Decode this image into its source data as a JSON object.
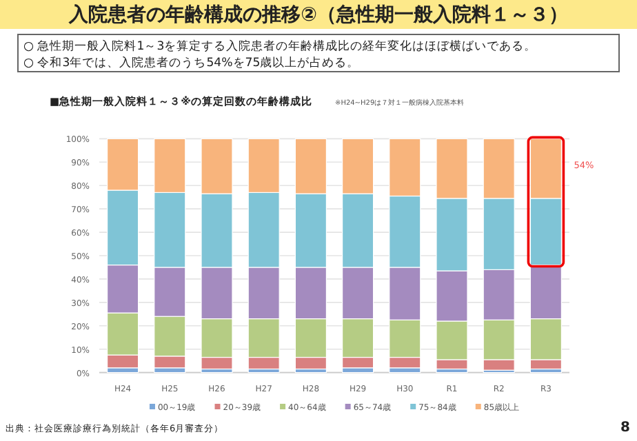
{
  "chart_data": {
    "type": "bar",
    "stacked": true,
    "title": "入院患者の年齢構成の推移②（急性期一般入院料１～３）",
    "subtitle": "■急性期一般入院料１～３※の算定回数の年齢構成比",
    "annotations": [
      "○ 急性期一般入院料1～3を算定する入院患者の年齢構成比の経年変化はほぼ横ばいである。",
      "○ 令和3年では、入院患者のうち54%を75歳以上が占める。",
      "※H24~H29は７対１一般病棟入院基本料",
      "54%",
      "出典：社会医療診療行為別統計（各年6月審査分）",
      "8"
    ],
    "categories": [
      "H24",
      "H25",
      "H26",
      "H27",
      "H28",
      "H29",
      "H30",
      "R1",
      "R2",
      "R3"
    ],
    "series": [
      {
        "name": "00～19歳",
        "color": "#7ba7d9",
        "values": [
          2,
          2,
          1.5,
          1.5,
          1.5,
          2,
          2,
          1.5,
          1,
          1.5
        ]
      },
      {
        "name": "20～39歳",
        "color": "#d98080",
        "values": [
          5.5,
          5,
          5,
          5,
          5,
          4.5,
          4.5,
          4,
          4.5,
          4
        ]
      },
      {
        "name": "40～64歳",
        "color": "#b5cc84",
        "values": [
          18,
          17,
          16.5,
          16.5,
          16.5,
          16.5,
          16,
          16.5,
          17,
          17.5
        ]
      },
      {
        "name": "65～74歳",
        "color": "#a48bbf",
        "values": [
          20.5,
          21,
          22,
          22,
          22,
          22,
          22.5,
          21.5,
          21.5,
          23
        ]
      },
      {
        "name": "75～84歳",
        "color": "#7fc4d6",
        "values": [
          32,
          32,
          31.5,
          32,
          31.5,
          31.5,
          30.5,
          31,
          30.5,
          28.5
        ]
      },
      {
        "name": "85歳以上",
        "color": "#f8b47c",
        "values": [
          22,
          23,
          23.5,
          23,
          23.5,
          23.5,
          24.5,
          25.5,
          25.5,
          25.5
        ]
      }
    ],
    "ylim": [
      0,
      100
    ],
    "yticks": [
      {
        "value": 0,
        "label": "0%"
      },
      {
        "value": 10,
        "label": "10%"
      },
      {
        "value": 20,
        "label": "20%"
      },
      {
        "value": 30,
        "label": "30%"
      },
      {
        "value": 40,
        "label": "40%"
      },
      {
        "value": 50,
        "label": "50%"
      },
      {
        "value": 60,
        "label": "60%"
      },
      {
        "value": 70,
        "label": "70%"
      },
      {
        "value": 80,
        "label": "80%"
      },
      {
        "value": 90,
        "label": "90%"
      },
      {
        "value": 100,
        "label": "100%"
      }
    ],
    "grid": "y",
    "legend": "bottom"
  }
}
